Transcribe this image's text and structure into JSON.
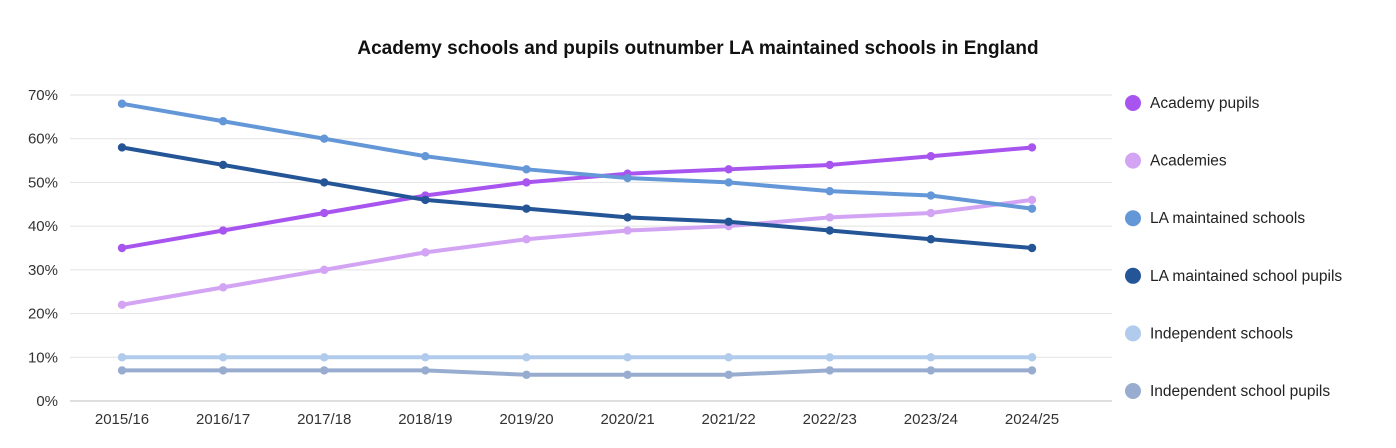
{
  "chart_data": {
    "type": "line",
    "title": "Academy schools and pupils outnumber LA maintained schools in England",
    "xlabel": "",
    "ylabel": "",
    "categories": [
      "2015/16",
      "2016/17",
      "2017/18",
      "2018/19",
      "2019/20",
      "2020/21",
      "2021/22",
      "2022/23",
      "2023/24",
      "2024/25"
    ],
    "ylim": [
      0,
      70
    ],
    "yticks": [
      "0%",
      "10%",
      "20%",
      "30%",
      "40%",
      "50%",
      "60%",
      "70%"
    ],
    "grid": true,
    "legend_position": "right",
    "series": [
      {
        "name": "Academy pupils",
        "color": "#a855f0",
        "values": [
          35,
          39,
          43,
          47,
          50,
          52,
          53,
          54,
          56,
          58
        ]
      },
      {
        "name": "Academies",
        "color": "#d3a4f4",
        "values": [
          22,
          26,
          30,
          34,
          37,
          39,
          40,
          42,
          43,
          46
        ]
      },
      {
        "name": "LA maintained schools",
        "color": "#6497d8",
        "values": [
          68,
          64,
          60,
          56,
          53,
          51,
          50,
          48,
          47,
          44
        ]
      },
      {
        "name": "LA maintained school pupils",
        "color": "#245596",
        "values": [
          58,
          54,
          50,
          46,
          44,
          42,
          41,
          39,
          37,
          35
        ]
      },
      {
        "name": "Independent schools",
        "color": "#b0cbec",
        "values": [
          10,
          10,
          10,
          10,
          10,
          10,
          10,
          10,
          10,
          10
        ]
      },
      {
        "name": "Independent school pupils",
        "color": "#98acd0",
        "values": [
          7,
          7,
          7,
          7,
          6,
          6,
          6,
          7,
          7,
          7
        ]
      }
    ]
  }
}
